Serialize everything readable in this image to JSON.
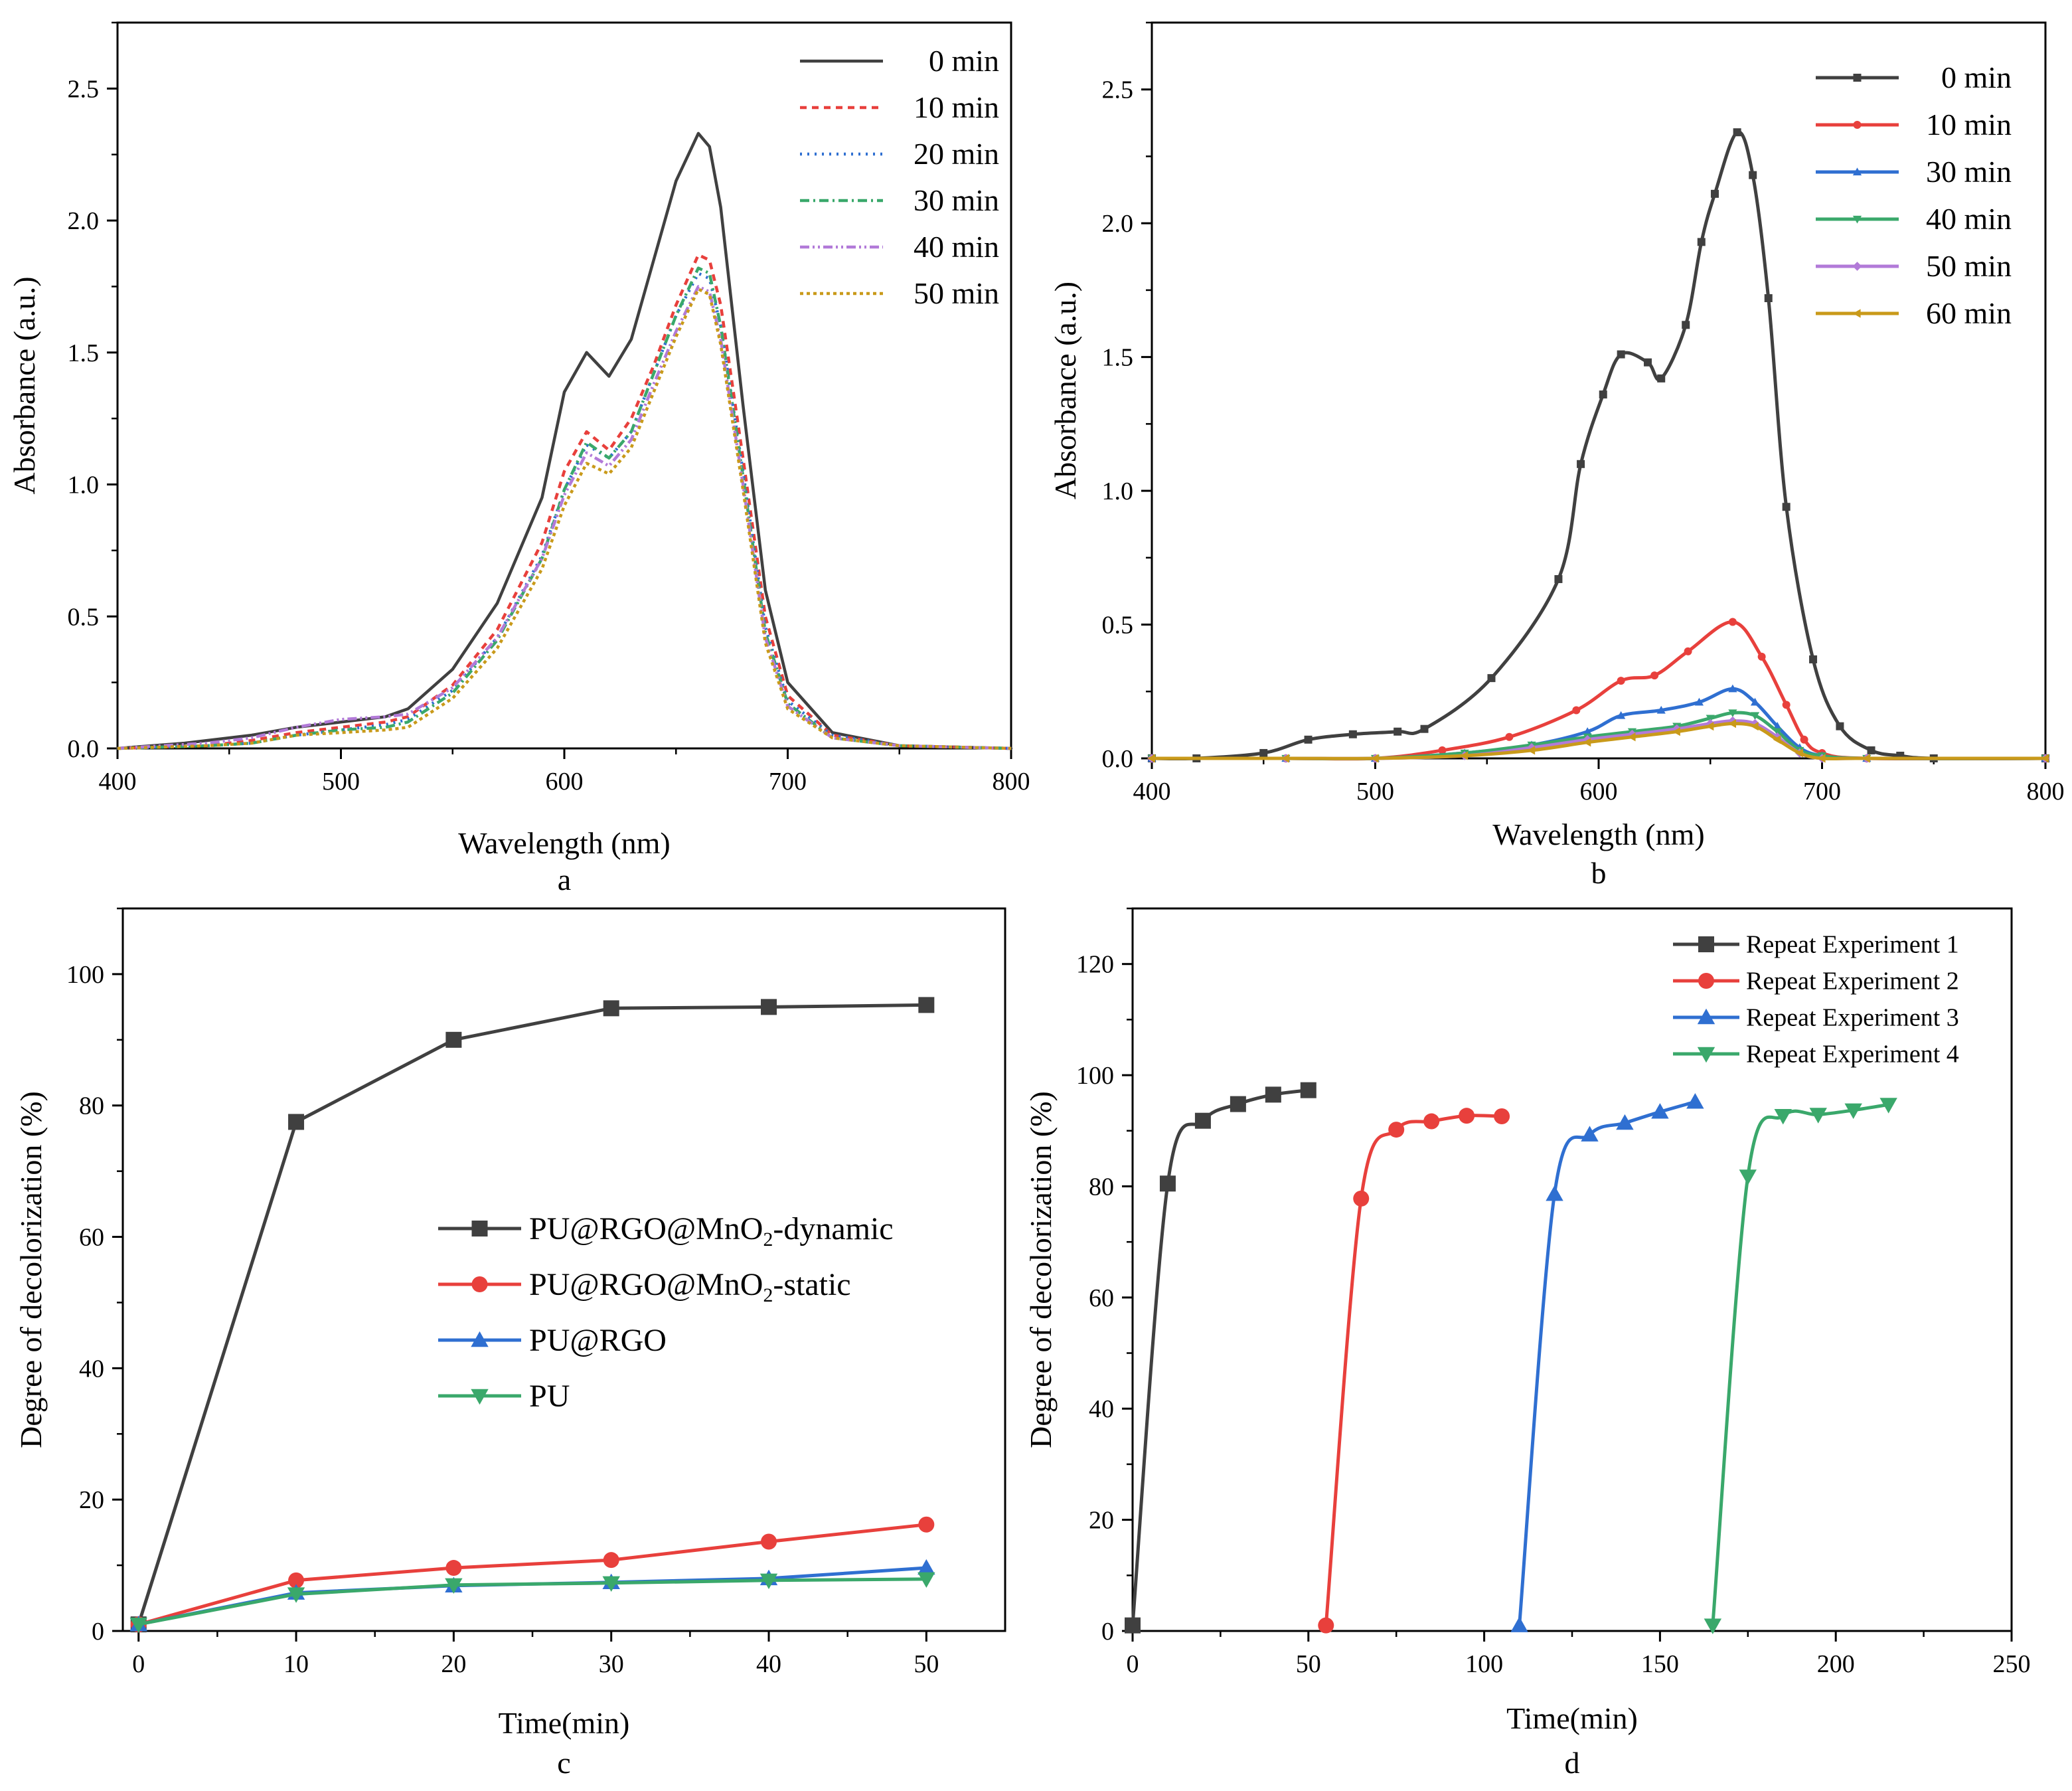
{
  "chart_data": [
    {
      "type": "line",
      "panel_letter": "a",
      "xlabel": "Wavelength (nm)",
      "ylabel": "Absorbance (a.u.)",
      "xlim": [
        400,
        800
      ],
      "ylim": [
        0,
        2.75
      ],
      "xticks": [
        400,
        500,
        600,
        700,
        800
      ],
      "xtick_labels": [
        "400",
        "500",
        "600",
        "700",
        "800"
      ],
      "yticks": [
        0,
        0.5,
        1.0,
        1.5,
        2.0,
        2.5
      ],
      "ytick_labels": [
        "0.0",
        "0.5",
        "1.0",
        "1.5",
        "2.0",
        "2.5"
      ],
      "legend_position": "top-right",
      "series": [
        {
          "name": "0 min",
          "label": "0 min",
          "color": "#404040",
          "dash": "solid",
          "x": [
            400,
            430,
            460,
            480,
            500,
            520,
            530,
            550,
            570,
            590,
            600,
            610,
            620,
            630,
            640,
            650,
            660,
            665,
            670,
            680,
            690,
            700,
            720,
            750,
            800
          ],
          "y": [
            0.0,
            0.02,
            0.05,
            0.08,
            0.1,
            0.12,
            0.15,
            0.3,
            0.55,
            0.95,
            1.35,
            1.5,
            1.41,
            1.55,
            1.85,
            2.15,
            2.33,
            2.28,
            2.05,
            1.3,
            0.6,
            0.25,
            0.06,
            0.01,
            0.0
          ]
        },
        {
          "name": "10 min",
          "label": "10 min",
          "color": "#e8403c",
          "dash": "10,8",
          "x": [
            400,
            440,
            460,
            480,
            500,
            520,
            530,
            550,
            570,
            590,
            600,
            610,
            620,
            630,
            640,
            650,
            660,
            665,
            670,
            680,
            690,
            700,
            720,
            750,
            800
          ],
          "y": [
            0.0,
            0.01,
            0.03,
            0.06,
            0.08,
            0.1,
            0.12,
            0.24,
            0.45,
            0.78,
            1.05,
            1.2,
            1.13,
            1.25,
            1.45,
            1.68,
            1.87,
            1.85,
            1.68,
            1.1,
            0.5,
            0.2,
            0.05,
            0.01,
            0.0
          ]
        },
        {
          "name": "20 min",
          "label": "20 min",
          "color": "#2f6fd1",
          "dash": "3,8",
          "x": [
            400,
            440,
            460,
            480,
            500,
            520,
            530,
            550,
            570,
            590,
            600,
            610,
            620,
            630,
            640,
            650,
            660,
            665,
            670,
            680,
            690,
            700,
            720,
            750,
            800
          ],
          "y": [
            0.0,
            0.01,
            0.02,
            0.05,
            0.07,
            0.09,
            0.11,
            0.22,
            0.42,
            0.73,
            0.98,
            1.15,
            1.1,
            1.2,
            1.42,
            1.64,
            1.8,
            1.78,
            1.6,
            1.05,
            0.46,
            0.18,
            0.05,
            0.01,
            0.0
          ]
        },
        {
          "name": "30 min",
          "label": "30 min",
          "color": "#3aa86b",
          "dash": "14,6,3,6",
          "x": [
            400,
            440,
            460,
            480,
            500,
            520,
            530,
            550,
            570,
            590,
            600,
            610,
            620,
            630,
            640,
            650,
            660,
            665,
            670,
            680,
            690,
            700,
            720,
            750,
            800
          ],
          "y": [
            0.0,
            0.01,
            0.02,
            0.05,
            0.07,
            0.08,
            0.1,
            0.21,
            0.41,
            0.72,
            0.98,
            1.16,
            1.1,
            1.2,
            1.42,
            1.64,
            1.82,
            1.8,
            1.6,
            1.03,
            0.44,
            0.17,
            0.04,
            0.01,
            0.0
          ]
        },
        {
          "name": "40 min",
          "label": "40 min",
          "color": "#b27ad8",
          "dash": "14,5,3,5,3,5",
          "x": [
            400,
            440,
            460,
            480,
            500,
            520,
            530,
            550,
            570,
            590,
            600,
            610,
            620,
            630,
            640,
            650,
            660,
            665,
            670,
            680,
            690,
            700,
            720,
            750,
            800
          ],
          "y": [
            0.0,
            0.02,
            0.04,
            0.08,
            0.11,
            0.12,
            0.13,
            0.23,
            0.42,
            0.72,
            0.96,
            1.12,
            1.07,
            1.17,
            1.38,
            1.58,
            1.75,
            1.73,
            1.55,
            1.0,
            0.42,
            0.16,
            0.04,
            0.01,
            0.0
          ]
        },
        {
          "name": "50 min",
          "label": "50 min",
          "color": "#c99a1a",
          "dash": "5,5",
          "x": [
            400,
            440,
            460,
            480,
            500,
            520,
            530,
            550,
            570,
            590,
            600,
            610,
            620,
            630,
            640,
            650,
            660,
            665,
            670,
            680,
            690,
            700,
            720,
            750,
            800
          ],
          "y": [
            0.0,
            0.01,
            0.02,
            0.05,
            0.06,
            0.07,
            0.08,
            0.19,
            0.38,
            0.68,
            0.92,
            1.08,
            1.04,
            1.14,
            1.35,
            1.56,
            1.74,
            1.72,
            1.53,
            0.98,
            0.4,
            0.15,
            0.04,
            0.01,
            0.0
          ]
        }
      ]
    },
    {
      "type": "line",
      "panel_letter": "b",
      "xlabel": "Wavelength (nm)",
      "ylabel": "Absorbance (a.u.)",
      "xlim": [
        400,
        800
      ],
      "ylim": [
        0,
        2.75
      ],
      "xticks": [
        400,
        500,
        600,
        700,
        800
      ],
      "xtick_labels": [
        "400",
        "500",
        "600",
        "700",
        "800"
      ],
      "yticks": [
        0,
        0.5,
        1.0,
        1.5,
        2.0,
        2.5
      ],
      "ytick_labels": [
        "0.0",
        "0.5",
        "1.0",
        "1.5",
        "2.0",
        "2.5"
      ],
      "legend_position": "top-right",
      "series": [
        {
          "name": "0 min",
          "label": "0 min",
          "color": "#404040",
          "marker": "square",
          "x": [
            400,
            420,
            450,
            470,
            490,
            510,
            522,
            552,
            582,
            592,
            602,
            610,
            622,
            628,
            639,
            646,
            652,
            662,
            669,
            676,
            684,
            696,
            708,
            722,
            735,
            750,
            800
          ],
          "y": [
            0.0,
            0.0,
            0.02,
            0.07,
            0.09,
            0.1,
            0.11,
            0.3,
            0.67,
            1.1,
            1.36,
            1.51,
            1.48,
            1.42,
            1.62,
            1.93,
            2.11,
            2.34,
            2.18,
            1.72,
            0.94,
            0.37,
            0.12,
            0.03,
            0.01,
            0.0,
            0.0
          ]
        },
        {
          "name": "10 min",
          "label": "10 min",
          "color": "#e8403c",
          "marker": "circle",
          "x": [
            400,
            460,
            500,
            530,
            560,
            590,
            610,
            625,
            640,
            660,
            673,
            684,
            692,
            700,
            720,
            800
          ],
          "y": [
            0.0,
            0.0,
            0.0,
            0.03,
            0.08,
            0.18,
            0.29,
            0.31,
            0.4,
            0.51,
            0.38,
            0.2,
            0.07,
            0.02,
            0.0,
            0.0
          ]
        },
        {
          "name": "30 min",
          "label": "30 min",
          "color": "#2f6fd1",
          "marker": "triangle-up",
          "x": [
            400,
            460,
            500,
            540,
            570,
            595,
            610,
            628,
            645,
            660,
            670,
            680,
            690,
            700,
            720,
            800
          ],
          "y": [
            0.0,
            0.0,
            0.0,
            0.02,
            0.05,
            0.1,
            0.16,
            0.18,
            0.21,
            0.26,
            0.21,
            0.12,
            0.04,
            0.01,
            0.0,
            0.0
          ]
        },
        {
          "name": "40 min",
          "label": "40 min",
          "color": "#3aa86b",
          "marker": "triangle-down",
          "x": [
            400,
            460,
            500,
            540,
            570,
            595,
            615,
            635,
            650,
            660,
            670,
            680,
            690,
            700,
            720,
            800
          ],
          "y": [
            0.0,
            0.0,
            0.0,
            0.02,
            0.05,
            0.08,
            0.1,
            0.12,
            0.15,
            0.17,
            0.16,
            0.1,
            0.03,
            0.01,
            0.0,
            0.0
          ]
        },
        {
          "name": "50 min",
          "label": "50 min",
          "color": "#b27ad8",
          "marker": "diamond",
          "x": [
            400,
            460,
            500,
            540,
            570,
            595,
            615,
            635,
            650,
            660,
            670,
            680,
            690,
            700,
            720,
            800
          ],
          "y": [
            0.0,
            0.0,
            0.0,
            0.01,
            0.04,
            0.07,
            0.09,
            0.11,
            0.13,
            0.14,
            0.13,
            0.08,
            0.02,
            0.0,
            0.0,
            0.0
          ]
        },
        {
          "name": "60 min",
          "label": "60 min",
          "color": "#c99a1a",
          "marker": "triangle-left",
          "x": [
            400,
            460,
            500,
            540,
            570,
            595,
            615,
            635,
            650,
            660,
            670,
            680,
            690,
            700,
            720,
            800
          ],
          "y": [
            0.0,
            0.0,
            0.0,
            0.01,
            0.03,
            0.06,
            0.08,
            0.1,
            0.12,
            0.13,
            0.12,
            0.07,
            0.02,
            0.0,
            0.0,
            0.0
          ]
        }
      ]
    },
    {
      "type": "line",
      "panel_letter": "c",
      "xlabel": "Time(min)",
      "ylabel": "Degree of decolorization (%)",
      "xlim": [
        -1,
        55
      ],
      "ylim": [
        0,
        110
      ],
      "xticks": [
        0,
        10,
        20,
        30,
        40,
        50
      ],
      "xtick_labels": [
        "0",
        "10",
        "20",
        "30",
        "40",
        "50"
      ],
      "yticks": [
        0,
        20,
        40,
        60,
        80,
        100
      ],
      "ytick_labels": [
        "0",
        "20",
        "40",
        "60",
        "80",
        "100"
      ],
      "legend_position": "center",
      "series": [
        {
          "name": "PU@RGO@MnO2-dynamic",
          "label_main": "PU@RGO@MnO",
          "label_sub": "2",
          "label_tail": "-dynamic",
          "color": "#404040",
          "marker": "square",
          "x": [
            0,
            10,
            20,
            30,
            40,
            50
          ],
          "y": [
            1.0,
            77.5,
            90.0,
            94.8,
            95.0,
            95.3
          ]
        },
        {
          "name": "PU@RGO@MnO2-static",
          "label_main": "PU@RGO@MnO",
          "label_sub": "2",
          "label_tail": "-static",
          "color": "#e8403c",
          "marker": "circle",
          "x": [
            0,
            10,
            20,
            30,
            40,
            50
          ],
          "y": [
            1.0,
            7.7,
            9.6,
            10.8,
            13.6,
            16.2
          ]
        },
        {
          "name": "PU@RGO",
          "label_main": "PU@RGO",
          "label_sub": "",
          "label_tail": "",
          "color": "#2f6fd1",
          "marker": "triangle-up",
          "x": [
            0,
            10,
            20,
            30,
            40,
            50
          ],
          "y": [
            1.0,
            5.8,
            6.9,
            7.4,
            8.0,
            9.6
          ]
        },
        {
          "name": "PU",
          "label_main": "PU",
          "label_sub": "",
          "label_tail": "",
          "color": "#3aa86b",
          "marker": "triangle-down",
          "x": [
            0,
            10,
            20,
            30,
            40,
            50
          ],
          "y": [
            1.0,
            5.6,
            7.0,
            7.3,
            7.7,
            7.9
          ]
        }
      ]
    },
    {
      "type": "line",
      "panel_letter": "d",
      "xlabel": "Time(min)",
      "ylabel": "Degree of decolorization (%)",
      "xlim": [
        0,
        250
      ],
      "ylim": [
        0,
        130
      ],
      "xticks": [
        0,
        50,
        100,
        150,
        200,
        250
      ],
      "xtick_labels": [
        "0",
        "50",
        "100",
        "150",
        "200",
        "250"
      ],
      "yticks": [
        0,
        20,
        40,
        60,
        80,
        100,
        120
      ],
      "ytick_labels": [
        "0",
        "20",
        "40",
        "60",
        "80",
        "100",
        "120"
      ],
      "legend_position": "top-right",
      "series": [
        {
          "name": "Repeat Experiment 1",
          "label": "Repeat Experiment 1",
          "color": "#404040",
          "marker": "square",
          "x": [
            0,
            10,
            20,
            30,
            40,
            50
          ],
          "y": [
            1.0,
            80.5,
            91.8,
            94.8,
            96.5,
            97.3
          ]
        },
        {
          "name": "Repeat Experiment 2",
          "label": "Repeat Experiment 2",
          "color": "#e8403c",
          "marker": "circle",
          "x": [
            55,
            65,
            75,
            85,
            95,
            105
          ],
          "y": [
            1.0,
            77.8,
            90.2,
            91.7,
            92.7,
            92.6
          ]
        },
        {
          "name": "Repeat Experiment 3",
          "label": "Repeat Experiment 3",
          "color": "#2f6fd1",
          "marker": "triangle-up",
          "x": [
            110,
            120,
            130,
            140,
            150,
            160
          ],
          "y": [
            1.0,
            78.6,
            89.3,
            91.4,
            93.4,
            95.2
          ]
        },
        {
          "name": "Repeat Experiment 4",
          "label": "Repeat Experiment 4",
          "color": "#3aa86b",
          "marker": "triangle-down",
          "x": [
            165,
            175,
            185,
            195,
            205,
            215
          ],
          "y": [
            1.0,
            81.8,
            92.7,
            92.9,
            93.7,
            94.7
          ]
        }
      ]
    }
  ]
}
